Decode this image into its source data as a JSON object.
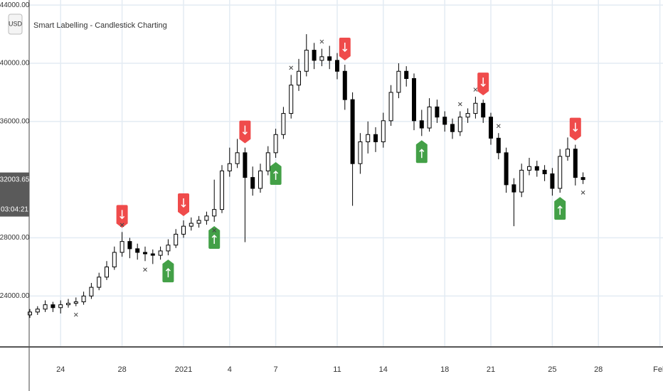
{
  "chart_data": {
    "type": "candlestick",
    "title": "Smart Labelling - Candlestick Charting",
    "currency": "USD",
    "countdown": "03:04:21",
    "categories": [
      null,
      null,
      null,
      null,
      "24",
      null,
      null,
      null,
      null,
      null,
      null,
      null,
      "28",
      null,
      null,
      null,
      null,
      null,
      null,
      null,
      "2021",
      null,
      null,
      null,
      null,
      null,
      "4",
      null,
      null,
      null,
      null,
      null,
      "7",
      null,
      null,
      null,
      null,
      null,
      null,
      null,
      "11",
      null,
      null,
      null,
      null,
      null,
      "14",
      null,
      null,
      null,
      null,
      null,
      null,
      null,
      "18",
      null,
      null,
      null,
      null,
      null,
      "21",
      null,
      null,
      null,
      null,
      null,
      null,
      null,
      "25",
      null,
      null,
      null,
      null,
      null,
      "28",
      null,
      null,
      null,
      null,
      null,
      null,
      null,
      "Feb"
    ],
    "ohlc": [
      [
        22700,
        23100,
        22500,
        22900
      ],
      [
        22900,
        23300,
        22700,
        23100
      ],
      [
        23100,
        23700,
        22900,
        23400
      ],
      [
        23400,
        23600,
        22900,
        23200
      ],
      [
        23200,
        23700,
        22800,
        23400
      ],
      [
        23400,
        23800,
        23200,
        23500
      ],
      [
        23500,
        23900,
        23300,
        23600
      ],
      [
        23600,
        24300,
        23400,
        24000
      ],
      [
        24000,
        24900,
        23800,
        24600
      ],
      [
        24600,
        25600,
        24400,
        25300
      ],
      [
        25300,
        26400,
        25100,
        26000
      ],
      [
        26000,
        27400,
        25800,
        27000
      ],
      [
        27000,
        28400,
        26700,
        27750
      ],
      [
        27750,
        28000,
        26600,
        27250
      ],
      [
        27250,
        27600,
        26500,
        27000
      ],
      [
        27000,
        27400,
        26400,
        26900
      ],
      [
        26900,
        27200,
        26200,
        26800
      ],
      [
        26800,
        27400,
        26500,
        27100
      ],
      [
        27100,
        27900,
        26800,
        27500
      ],
      [
        27500,
        28600,
        27300,
        28250
      ],
      [
        28250,
        29200,
        28000,
        28800
      ],
      [
        28800,
        29400,
        28500,
        29000
      ],
      [
        29000,
        29500,
        28700,
        29200
      ],
      [
        29200,
        29800,
        28900,
        29500
      ],
      [
        29500,
        32000,
        29100,
        29950
      ],
      [
        29950,
        33000,
        29700,
        32600
      ],
      [
        32600,
        34200,
        32200,
        33100
      ],
      [
        33100,
        34800,
        32800,
        33850
      ],
      [
        33850,
        34200,
        27700,
        32150
      ],
      [
        32150,
        32900,
        30900,
        31400
      ],
      [
        31400,
        33100,
        31100,
        32600
      ],
      [
        32600,
        34300,
        32300,
        33850
      ],
      [
        33850,
        35500,
        33500,
        35100
      ],
      [
        35100,
        37000,
        34800,
        36550
      ],
      [
        36550,
        39200,
        36200,
        38500
      ],
      [
        38500,
        40300,
        38100,
        39450
      ],
      [
        39450,
        42000,
        39100,
        40900
      ],
      [
        40900,
        41400,
        39600,
        40200
      ],
      [
        40200,
        41000,
        39800,
        40450
      ],
      [
        40450,
        41200,
        39600,
        40200
      ],
      [
        40200,
        40700,
        38900,
        39450
      ],
      [
        39450,
        39900,
        36800,
        37500
      ],
      [
        37500,
        38000,
        30200,
        33100
      ],
      [
        33100,
        35200,
        32400,
        34600
      ],
      [
        34600,
        36000,
        33800,
        35100
      ],
      [
        35100,
        35600,
        33900,
        34600
      ],
      [
        34600,
        36600,
        34200,
        36050
      ],
      [
        36050,
        38500,
        35700,
        38000
      ],
      [
        38000,
        40000,
        37600,
        39450
      ],
      [
        39450,
        39800,
        38400,
        38950
      ],
      [
        38950,
        39300,
        35400,
        36050
      ],
      [
        36050,
        36800,
        35000,
        35550
      ],
      [
        35550,
        37600,
        35300,
        37000
      ],
      [
        37000,
        37500,
        35900,
        36300
      ],
      [
        36300,
        36700,
        35300,
        35800
      ],
      [
        35800,
        36200,
        34800,
        35300
      ],
      [
        35300,
        36700,
        35000,
        36300
      ],
      [
        36300,
        36900,
        35900,
        36550
      ],
      [
        36550,
        37700,
        36200,
        37250
      ],
      [
        37250,
        37500,
        35900,
        36300
      ],
      [
        36300,
        36600,
        34400,
        34850
      ],
      [
        34850,
        35200,
        33400,
        33850
      ],
      [
        33850,
        34200,
        31100,
        31650
      ],
      [
        31650,
        32100,
        28800,
        31150
      ],
      [
        31150,
        33100,
        30800,
        32650
      ],
      [
        32650,
        33500,
        32300,
        32900
      ],
      [
        32900,
        33300,
        32200,
        32650
      ],
      [
        32650,
        33000,
        31900,
        32400
      ],
      [
        32400,
        32800,
        30900,
        31400
      ],
      [
        31400,
        34100,
        31100,
        33600
      ],
      [
        33600,
        34900,
        33300,
        34100
      ],
      [
        34100,
        34400,
        31600,
        32150
      ],
      [
        32150,
        32500,
        31700,
        32003.65
      ],
      null,
      null,
      null,
      null,
      null,
      null,
      null,
      null,
      null,
      null
    ],
    "sell_signals": [
      12,
      20,
      28,
      41,
      59,
      71
    ],
    "buy_signals": [
      18,
      24,
      32,
      51,
      69
    ],
    "crosses_above": [
      12,
      34,
      38,
      56,
      58,
      61
    ],
    "crosses_below": [
      6,
      15,
      24,
      72
    ],
    "ylim": [
      20500,
      44350
    ],
    "yticks": [
      {
        "value": 24000,
        "label": "24000.00"
      },
      {
        "value": 28000,
        "label": "28000.00"
      },
      {
        "value": 36000,
        "label": "36000.00"
      },
      {
        "value": 40000,
        "label": "40000.00"
      },
      {
        "value": 44000,
        "label": "44000.00"
      }
    ],
    "grid": true,
    "up_color": "#ffffff",
    "down_color": "#000000",
    "sell_color": "#ef4b4b",
    "buy_color": "#43a047"
  }
}
